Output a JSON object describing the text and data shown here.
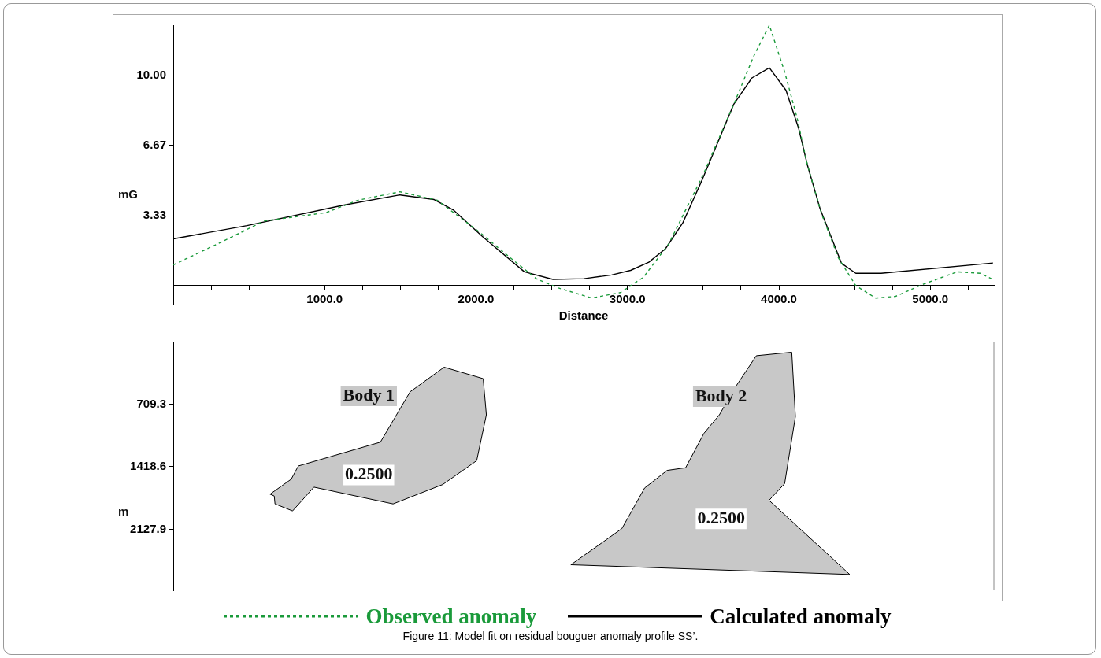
{
  "chart_data": [
    {
      "type": "line",
      "xlabel": "Distance",
      "ylabel": "mG",
      "legend": "bottom",
      "marker": "none",
      "grid": false,
      "annotations": [
        "Figure 11: Model fit on residual bouguer anomaly profile SS’."
      ],
      "xlim": [
        0,
        5420
      ],
      "ylim": [
        -0.9,
        12.4
      ],
      "xticks": [
        {
          "value": 250,
          "label": null
        },
        {
          "value": 500,
          "label": null
        },
        {
          "value": 750,
          "label": null
        },
        {
          "value": 1000,
          "label": "1000.0"
        },
        {
          "value": 1250,
          "label": null
        },
        {
          "value": 1500,
          "label": null
        },
        {
          "value": 1750,
          "label": null
        },
        {
          "value": 2000,
          "label": "2000.0"
        },
        {
          "value": 2250,
          "label": null
        },
        {
          "value": 2500,
          "label": null
        },
        {
          "value": 2750,
          "label": null
        },
        {
          "value": 3000,
          "label": "3000.0"
        },
        {
          "value": 3250,
          "label": null
        },
        {
          "value": 3500,
          "label": null
        },
        {
          "value": 3750,
          "label": null
        },
        {
          "value": 4000,
          "label": "4000.0"
        },
        {
          "value": 4250,
          "label": null
        },
        {
          "value": 4500,
          "label": null
        },
        {
          "value": 4750,
          "label": null
        },
        {
          "value": 5000,
          "label": "5000.0"
        },
        {
          "value": 5250,
          "label": null
        }
      ],
      "yticks": [
        3.33,
        6.67,
        {
          "value": 10,
          "label": "10.00"
        }
      ],
      "series": [
        {
          "name": "Observed anomaly",
          "color": "#1a9a3a",
          "line_style": "dashed",
          "x": [
            0,
            246,
            602,
            1010,
            1220,
            1497,
            1743,
            2021,
            2209,
            2398,
            2544,
            2764,
            2953,
            3105,
            3272,
            3497,
            3702,
            3832,
            3937,
            4037,
            4120,
            4188,
            4283,
            4393,
            4508,
            4639,
            4770,
            4953,
            5178,
            5330,
            5403
          ],
          "values": [
            0.99,
            1.83,
            3.08,
            3.48,
            4.07,
            4.47,
            4.07,
            2.56,
            1.43,
            0.33,
            -0.11,
            -0.59,
            -0.33,
            0.4,
            1.98,
            5.24,
            8.64,
            10.9,
            12.4,
            10.2,
            7.99,
            5.75,
            3.4,
            1.32,
            0,
            -0.59,
            -0.51,
            0.07,
            0.66,
            0.59,
            0.33
          ]
        },
        {
          "name": "Calculated anomaly",
          "color": "#000000",
          "line_style": "solid",
          "x": [
            0,
            487,
            1141,
            1497,
            1723,
            1853,
            2042,
            2319,
            2508,
            2712,
            2895,
            3021,
            3141,
            3251,
            3366,
            3497,
            3702,
            3822,
            3937,
            4047,
            4131,
            4188,
            4272,
            4414,
            4508,
            4675,
            5414
          ],
          "values": [
            2.23,
            2.86,
            3.86,
            4.32,
            4.1,
            3.59,
            2.34,
            0.66,
            0.3,
            0.33,
            0.51,
            0.73,
            1.12,
            1.76,
            3.0,
            5.1,
            8.64,
            9.89,
            10.37,
            9.3,
            7.47,
            5.75,
            3.66,
            1.06,
            0.59,
            0.59,
            1.08
          ]
        }
      ]
    },
    {
      "type": "area",
      "ylabel": "m",
      "tick_labels": "y",
      "marker": "none",
      "grid": false,
      "xlim": [
        0,
        5420
      ],
      "ylim": [
        2820,
        0
      ],
      "yticks": [
        709.3,
        1418.6,
        2127.9
      ],
      "series": [
        {
          "name": "Body 1",
          "color": "#c8c8c8",
          "x": [
            1789,
            2047,
            2068,
            2004,
            1780,
            1452,
            929,
            788,
            672,
            667,
            639,
            779,
            826,
            1368,
            1564
          ],
          "values": [
            290,
            420,
            830,
            1350,
            1620,
            1840,
            1650,
            1920,
            1840,
            1750,
            1730,
            1560,
            1410,
            1140,
            570
          ]
        },
        {
          "name": "Body 2",
          "color": "#c8c8c8",
          "x": [
            3851,
            4085,
            4109,
            4038,
            3935,
            4468,
            2626,
            2963,
            3113,
            3262,
            3384,
            3505,
            3607,
            3711
          ],
          "values": [
            160,
            120,
            850,
            1610,
            1800,
            2640,
            2530,
            2120,
            1660,
            1460,
            1430,
            1040,
            830,
            520
          ]
        }
      ],
      "annotations": [
        "0.2500",
        "0.2500"
      ]
    }
  ]
}
